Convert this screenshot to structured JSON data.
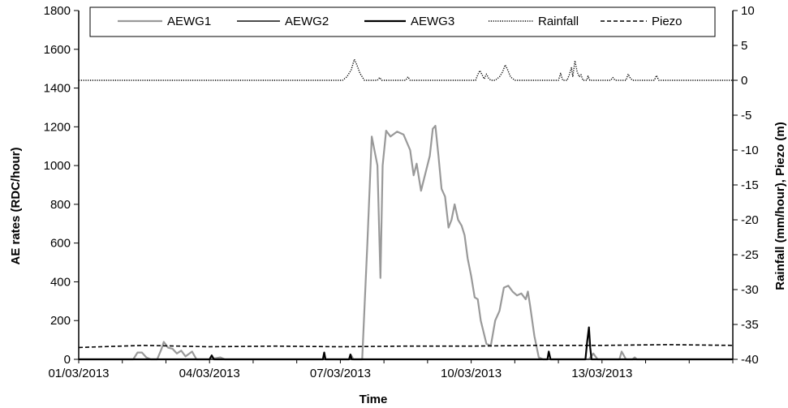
{
  "chart_data": {
    "type": "line",
    "xlabel": "Time",
    "ylabel_left": "AE rates (RDC/hour)",
    "ylabel_right": "Rainfall (mm/hour), Piezo (m)",
    "x_range_days": [
      0,
      15
    ],
    "x_ticks": [
      {
        "day": 0,
        "label": "01/03/2013"
      },
      {
        "day": 3,
        "label": "04/03/2013"
      },
      {
        "day": 6,
        "label": "07/03/2013"
      },
      {
        "day": 9,
        "label": "10/03/2013"
      },
      {
        "day": 12,
        "label": "13/03/2013"
      }
    ],
    "y_left": {
      "min": 0,
      "max": 1800,
      "ticks": [
        0,
        200,
        400,
        600,
        800,
        1000,
        1200,
        1400,
        1600,
        1800
      ]
    },
    "y_right": {
      "min": -40,
      "max": 10,
      "ticks": [
        10,
        5,
        0,
        -5,
        -10,
        -15,
        -20,
        -25,
        -30,
        -35,
        -40
      ]
    },
    "legend_position": "top",
    "grid": false,
    "colors": {
      "AEWG1": "#999999",
      "AEWG2": "#333333",
      "AEWG3": "#000000",
      "Rainfall": "#000000",
      "Piezo": "#000000"
    },
    "series": [
      {
        "name": "AEWG1",
        "axis": "left",
        "style": "solid",
        "points": [
          [
            0,
            0
          ],
          [
            1.25,
            0
          ],
          [
            1.35,
            35
          ],
          [
            1.45,
            35
          ],
          [
            1.55,
            10
          ],
          [
            1.65,
            0
          ],
          [
            1.8,
            0
          ],
          [
            1.9,
            55
          ],
          [
            1.95,
            90
          ],
          [
            2.05,
            60
          ],
          [
            2.15,
            55
          ],
          [
            2.25,
            30
          ],
          [
            2.35,
            45
          ],
          [
            2.45,
            15
          ],
          [
            2.6,
            40
          ],
          [
            2.7,
            0
          ],
          [
            3.0,
            0
          ],
          [
            3.25,
            10
          ],
          [
            3.35,
            0
          ],
          [
            6.0,
            0
          ],
          [
            6.2,
            0
          ],
          [
            6.25,
            20
          ],
          [
            6.3,
            0
          ],
          [
            6.5,
            0
          ],
          [
            6.62,
            600
          ],
          [
            6.72,
            1150
          ],
          [
            6.85,
            1000
          ],
          [
            6.92,
            420
          ],
          [
            6.97,
            1000
          ],
          [
            7.05,
            1180
          ],
          [
            7.15,
            1150
          ],
          [
            7.3,
            1175
          ],
          [
            7.45,
            1160
          ],
          [
            7.6,
            1080
          ],
          [
            7.68,
            950
          ],
          [
            7.75,
            1010
          ],
          [
            7.85,
            870
          ],
          [
            7.95,
            960
          ],
          [
            8.05,
            1050
          ],
          [
            8.12,
            1190
          ],
          [
            8.18,
            1205
          ],
          [
            8.25,
            1050
          ],
          [
            8.32,
            880
          ],
          [
            8.4,
            840
          ],
          [
            8.48,
            680
          ],
          [
            8.55,
            720
          ],
          [
            8.62,
            800
          ],
          [
            8.7,
            720
          ],
          [
            8.78,
            690
          ],
          [
            8.85,
            640
          ],
          [
            8.92,
            520
          ],
          [
            9.0,
            430
          ],
          [
            9.08,
            320
          ],
          [
            9.15,
            310
          ],
          [
            9.22,
            200
          ],
          [
            9.35,
            80
          ],
          [
            9.45,
            70
          ],
          [
            9.55,
            200
          ],
          [
            9.65,
            250
          ],
          [
            9.75,
            370
          ],
          [
            9.85,
            380
          ],
          [
            9.95,
            350
          ],
          [
            10.05,
            330
          ],
          [
            10.15,
            340
          ],
          [
            10.25,
            310
          ],
          [
            10.3,
            350
          ],
          [
            10.35,
            280
          ],
          [
            10.45,
            120
          ],
          [
            10.55,
            10
          ],
          [
            10.65,
            0
          ],
          [
            11.0,
            0
          ],
          [
            11.7,
            0
          ],
          [
            11.8,
            30
          ],
          [
            11.9,
            0
          ],
          [
            12.0,
            0
          ],
          [
            12.4,
            0
          ],
          [
            12.45,
            40
          ],
          [
            12.55,
            0
          ],
          [
            12.7,
            0
          ],
          [
            12.75,
            10
          ],
          [
            12.8,
            0
          ],
          [
            15,
            0
          ]
        ]
      },
      {
        "name": "AEWG2",
        "axis": "left",
        "style": "solid",
        "points": [
          [
            0,
            0
          ],
          [
            15,
            0
          ]
        ]
      },
      {
        "name": "AEWG3",
        "axis": "left",
        "style": "solid",
        "points": [
          [
            0,
            0
          ],
          [
            3.0,
            0
          ],
          [
            3.05,
            20
          ],
          [
            3.1,
            0
          ],
          [
            5.6,
            0
          ],
          [
            5.63,
            35
          ],
          [
            5.66,
            0
          ],
          [
            6.2,
            0
          ],
          [
            6.23,
            25
          ],
          [
            6.26,
            0
          ],
          [
            10.75,
            0
          ],
          [
            10.78,
            40
          ],
          [
            10.82,
            0
          ],
          [
            11.62,
            0
          ],
          [
            11.66,
            90
          ],
          [
            11.7,
            165
          ],
          [
            11.73,
            60
          ],
          [
            11.76,
            0
          ],
          [
            15,
            0
          ]
        ]
      },
      {
        "name": "Rainfall",
        "axis": "right",
        "style": "dotted",
        "points": [
          [
            0,
            0
          ],
          [
            6.05,
            0
          ],
          [
            6.15,
            0.5
          ],
          [
            6.25,
            1.5
          ],
          [
            6.32,
            3.0
          ],
          [
            6.38,
            2.2
          ],
          [
            6.45,
            1.0
          ],
          [
            6.55,
            0
          ],
          [
            6.85,
            0
          ],
          [
            6.9,
            0.4
          ],
          [
            6.95,
            0
          ],
          [
            7.5,
            0
          ],
          [
            7.55,
            0.5
          ],
          [
            7.6,
            0
          ],
          [
            9.1,
            0
          ],
          [
            9.15,
            0.8
          ],
          [
            9.2,
            1.4
          ],
          [
            9.25,
            0.8
          ],
          [
            9.3,
            0.2
          ],
          [
            9.35,
            0.9
          ],
          [
            9.4,
            0.3
          ],
          [
            9.45,
            0
          ],
          [
            9.55,
            0
          ],
          [
            9.65,
            0.5
          ],
          [
            9.72,
            1.2
          ],
          [
            9.78,
            2.2
          ],
          [
            9.83,
            1.6
          ],
          [
            9.9,
            0.5
          ],
          [
            10.0,
            0
          ],
          [
            11.0,
            0
          ],
          [
            11.05,
            1.0
          ],
          [
            11.1,
            0
          ],
          [
            11.2,
            0
          ],
          [
            11.25,
            0.8
          ],
          [
            11.3,
            1.8
          ],
          [
            11.33,
            0.5
          ],
          [
            11.38,
            2.8
          ],
          [
            11.43,
            1.2
          ],
          [
            11.48,
            0.5
          ],
          [
            11.52,
            0.8
          ],
          [
            11.56,
            0
          ],
          [
            11.65,
            0
          ],
          [
            11.68,
            0.6
          ],
          [
            11.72,
            0
          ],
          [
            12.2,
            0
          ],
          [
            12.25,
            0.4
          ],
          [
            12.3,
            0
          ],
          [
            12.55,
            0
          ],
          [
            12.6,
            0.9
          ],
          [
            12.65,
            0.3
          ],
          [
            12.7,
            0
          ],
          [
            13.2,
            0
          ],
          [
            13.25,
            0.7
          ],
          [
            13.3,
            0
          ],
          [
            15,
            0
          ]
        ]
      },
      {
        "name": "Piezo",
        "axis": "right",
        "style": "dashed",
        "points": [
          [
            0,
            -38.3
          ],
          [
            1.5,
            -38.0
          ],
          [
            3.0,
            -38.2
          ],
          [
            4.5,
            -38.1
          ],
          [
            6.0,
            -38.2
          ],
          [
            7.5,
            -38.1
          ],
          [
            9.0,
            -38.1
          ],
          [
            10.5,
            -38.0
          ],
          [
            12.0,
            -38.0
          ],
          [
            13.5,
            -37.9
          ],
          [
            15,
            -38.0
          ]
        ]
      }
    ]
  }
}
